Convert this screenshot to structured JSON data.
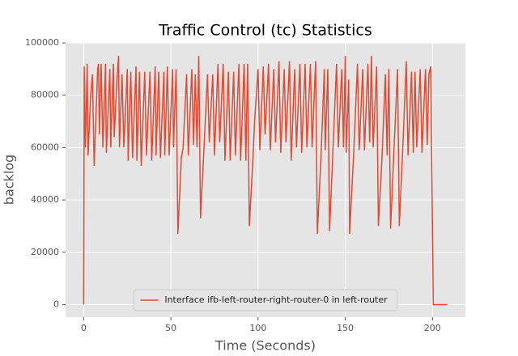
{
  "chart_data": {
    "type": "line",
    "title": "Traffic Control (tc) Statistics",
    "x_label": "Time (Seconds)",
    "y_label": "backlog",
    "xlim": [
      -10.4,
      218.9
    ],
    "ylim": [
      -4800,
      100000
    ],
    "xticks": [
      0,
      50,
      100,
      150,
      200
    ],
    "yticks": [
      0,
      20000,
      40000,
      60000,
      80000,
      100000
    ],
    "grid": true,
    "legend_position": "lower center",
    "series": [
      {
        "name": "Interface ifb-left-router-right-router-0 in left-router",
        "color": "#e24a33",
        "x": [
          0,
          0.3,
          1,
          2,
          2.5,
          4,
          5,
          6,
          8,
          8.5,
          9,
          10,
          11,
          12.5,
          13,
          15,
          15.5,
          17,
          17.5,
          19,
          20,
          20.5,
          22,
          23,
          25,
          25.5,
          27,
          28,
          30,
          30.5,
          32,
          33,
          35,
          36,
          38,
          39,
          41,
          41.5,
          43,
          44,
          46,
          46.5,
          48,
          49,
          51,
          51.5,
          53,
          54,
          56,
          57,
          59,
          60,
          62,
          63,
          64,
          65,
          66,
          67,
          69,
          71,
          72,
          74,
          75,
          77,
          78,
          80,
          81,
          83,
          84,
          86,
          87,
          89,
          90,
          92,
          93,
          94,
          95,
          97,
          98,
          100,
          101,
          103,
          104,
          106,
          107,
          109,
          110,
          112,
          113,
          115,
          116,
          118,
          119,
          121,
          122,
          124,
          125,
          127,
          128,
          130,
          131,
          133,
          134,
          136,
          138,
          138.5,
          140,
          141,
          143,
          145,
          146,
          148,
          149,
          150,
          150.5,
          152,
          152.5,
          155,
          157,
          158,
          160,
          161,
          163,
          164,
          165,
          166,
          168,
          169,
          171,
          173,
          174,
          175,
          176,
          178,
          180,
          181,
          183,
          185,
          186,
          188,
          189,
          190,
          191,
          193,
          194,
          196,
          197,
          198,
          199,
          200,
          200.5,
          208.5
        ],
        "values": [
          0,
          91000,
          60000,
          92000,
          57000,
          80000,
          88000,
          53000,
          90000,
          92000,
          65000,
          92000,
          60000,
          92000,
          58000,
          90000,
          60000,
          92000,
          64000,
          85000,
          95000,
          60000,
          88000,
          60000,
          90000,
          55000,
          89000,
          56000,
          91000,
          55000,
          89000,
          53000,
          89000,
          57000,
          89000,
          55000,
          91000,
          57000,
          89000,
          56000,
          89000,
          57000,
          91000,
          57000,
          90000,
          60000,
          90000,
          27000,
          56000,
          60000,
          88000,
          57000,
          90000,
          61000,
          88000,
          60000,
          95000,
          33000,
          60000,
          88000,
          62000,
          88000,
          57000,
          92000,
          62000,
          92000,
          55000,
          89000,
          55000,
          89000,
          57000,
          92000,
          55000,
          92000,
          55000,
          92000,
          30000,
          55000,
          70000,
          90000,
          59000,
          91000,
          65000,
          92000,
          59000,
          90000,
          62000,
          93000,
          58000,
          90000,
          62000,
          93000,
          55000,
          90000,
          60000,
          92000,
          58000,
          92000,
          60000,
          92000,
          60000,
          93000,
          27000,
          55000,
          90000,
          59000,
          90000,
          28000,
          60000,
          92000,
          60000,
          90000,
          60000,
          95000,
          58000,
          86000,
          27000,
          60000,
          92000,
          59000,
          90000,
          59000,
          92000,
          62000,
          95000,
          60000,
          91000,
          30000,
          55000,
          88000,
          57000,
          90000,
          29000,
          60000,
          90000,
          30000,
          60000,
          93000,
          57000,
          89000,
          58000,
          89000,
          60000,
          90000,
          58000,
          90000,
          61000,
          88000,
          91000,
          30000,
          0,
          0
        ]
      }
    ]
  }
}
